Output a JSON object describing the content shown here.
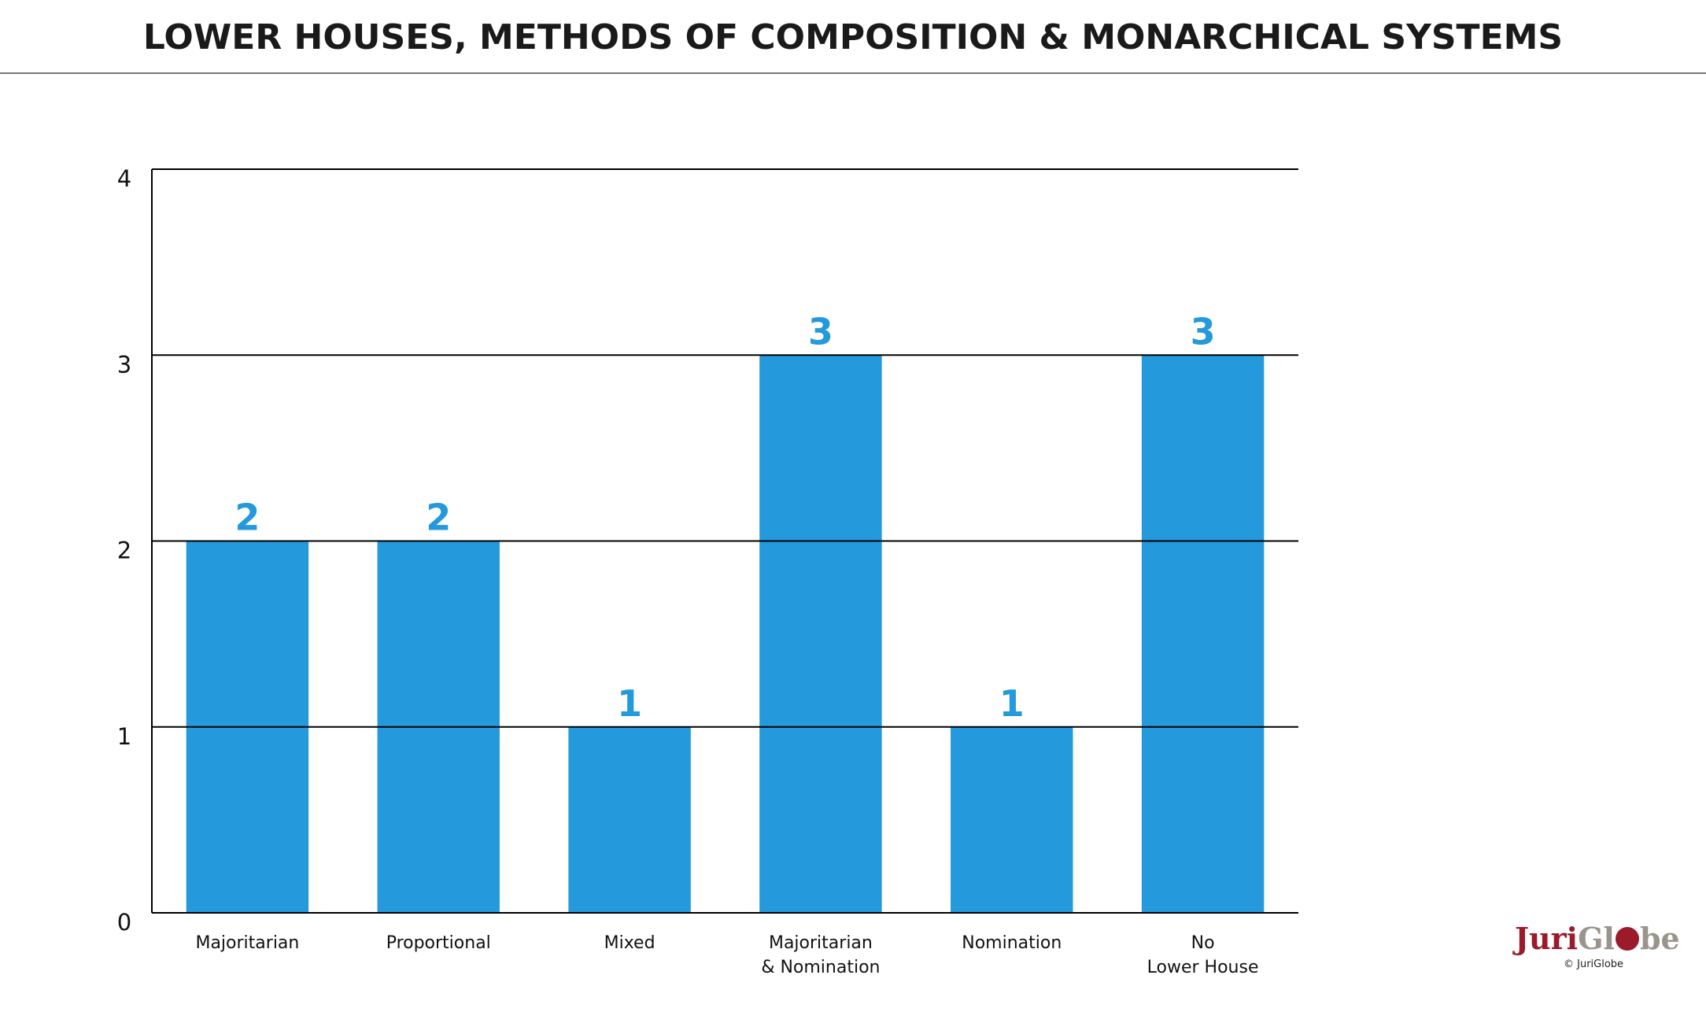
{
  "title": "LOWER HOUSES, METHODS OF COMPOSITION & MONARCHICAL SYSTEMS",
  "brand": {
    "name_part1": "Juri",
    "name_part2a": "Gl",
    "name_part2b": "be",
    "copyright": "© JuriGlobe",
    "primary_color": "#9b1b2a",
    "secondary_color": "#9a948b"
  },
  "chart_data": {
    "type": "bar",
    "categories": [
      [
        "Majoritarian"
      ],
      [
        "Proportional"
      ],
      [
        "Mixed"
      ],
      [
        "Majoritarian",
        "& Nomination"
      ],
      [
        "Nomination"
      ],
      [
        "No",
        "Lower House"
      ]
    ],
    "values": [
      2,
      2,
      1,
      3,
      1,
      3
    ],
    "data_labels": [
      "2",
      "2",
      "1",
      "3",
      "1",
      "3"
    ],
    "yticks": [
      "0",
      "1",
      "2",
      "3",
      "4"
    ],
    "ylim": [
      0,
      4
    ],
    "grid": true,
    "legend": "none",
    "bar_color": "#2499db",
    "label_color": "#2499db"
  }
}
